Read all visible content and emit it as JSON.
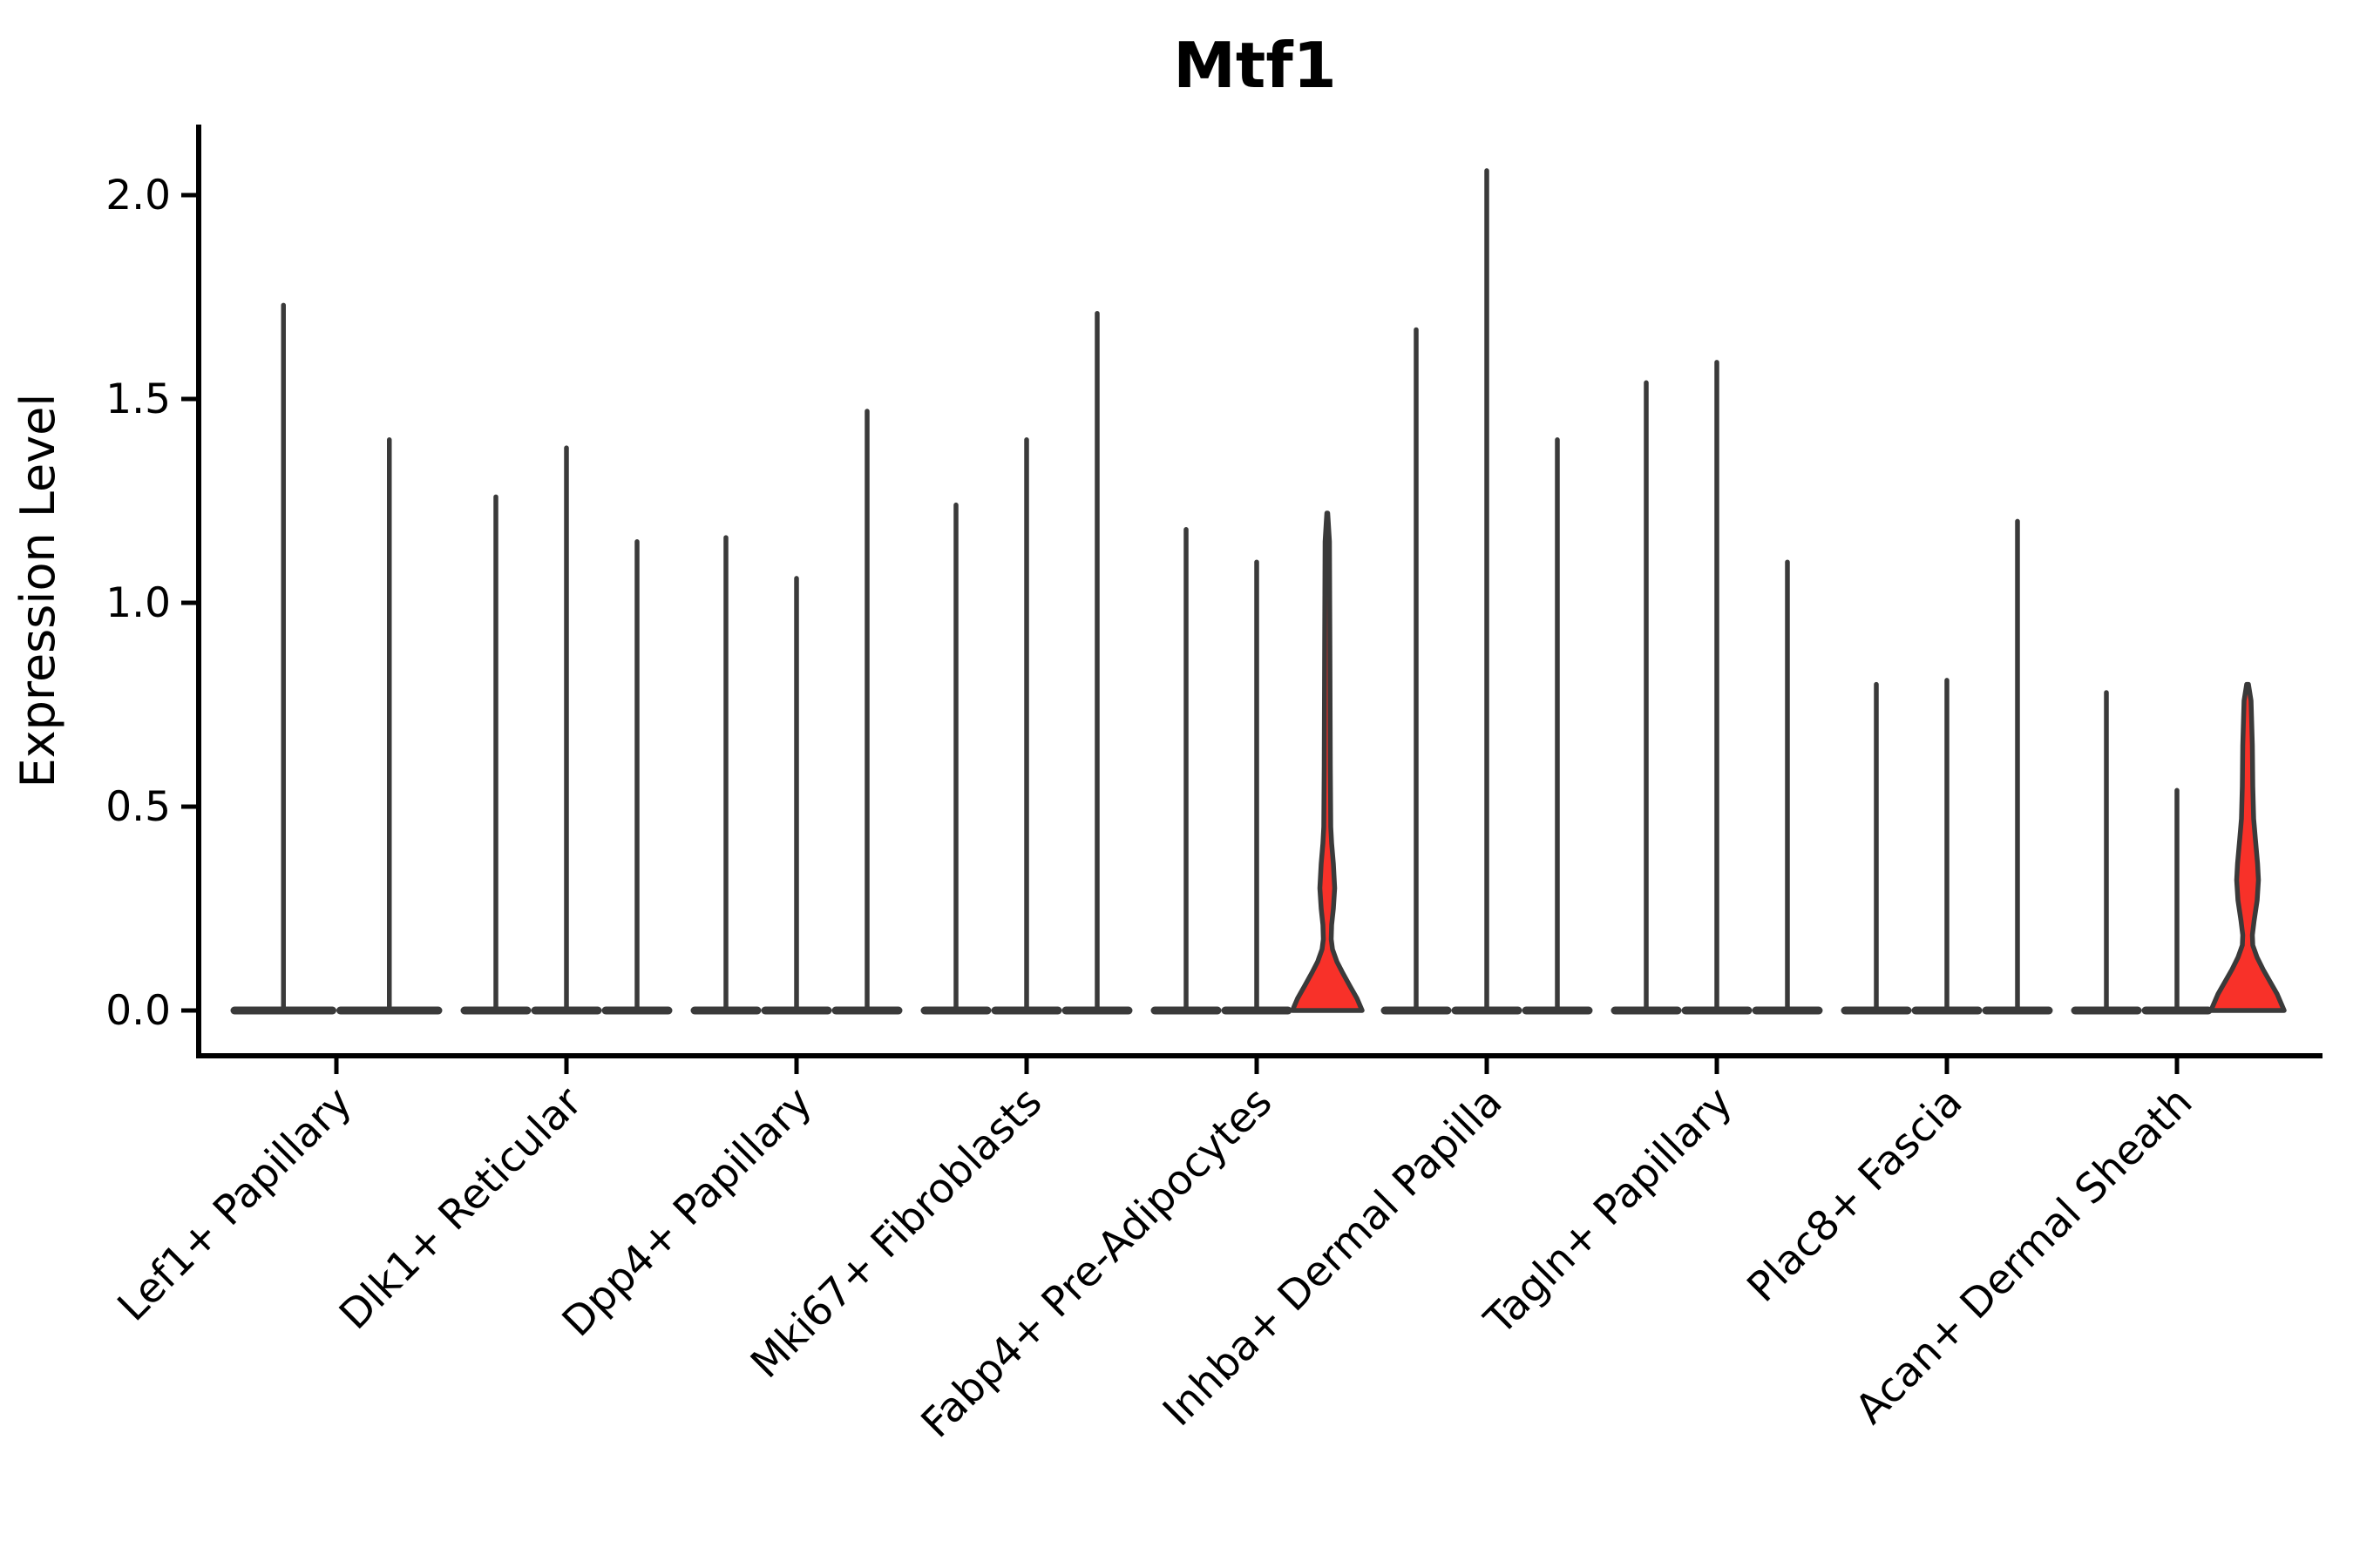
{
  "chart_data": {
    "type": "violin",
    "title": "Mtf1",
    "xlabel": "",
    "ylabel": "Expression Level",
    "yticks": [
      {
        "label": "0.0",
        "value": 0.0
      },
      {
        "label": "0.5",
        "value": 0.5
      },
      {
        "label": "1.0",
        "value": 1.0
      },
      {
        "label": "1.5",
        "value": 1.5
      },
      {
        "label": "2.0",
        "value": 2.0
      }
    ],
    "ylim": [
      -0.11,
      2.17
    ],
    "grid": false,
    "legend": "none",
    "categories": [
      "Lef1+ Papillary",
      "Dlk1+ Reticular",
      "Dpp4+ Papillary",
      "Mki67+ Fibroblasts",
      "Fabp4+ Pre-Adipocytes",
      "Inhba+ Dermal Papilla",
      "Tagln+ Papillary",
      "Plac8+ Fascia",
      "Acan+ Dermal Sheath"
    ],
    "groups": [
      {
        "category": "Lef1+ Papillary",
        "violins": [
          {
            "max": 1.73
          },
          {
            "max": 1.4
          }
        ]
      },
      {
        "category": "Dlk1+ Reticular",
        "violins": [
          {
            "max": 1.26
          },
          {
            "max": 1.38
          },
          {
            "max": 1.15
          }
        ]
      },
      {
        "category": "Dpp4+ Papillary",
        "violins": [
          {
            "max": 1.16
          },
          {
            "max": 1.06
          },
          {
            "max": 1.47
          }
        ]
      },
      {
        "category": "Mki67+ Fibroblasts",
        "violins": [
          {
            "max": 1.24
          },
          {
            "max": 1.4
          },
          {
            "max": 1.71
          }
        ]
      },
      {
        "category": "Fabp4+ Pre-Adipocytes",
        "violins": [
          {
            "max": 1.18
          },
          {
            "max": 1.1
          },
          {
            "max": 1.22,
            "highlighted": true,
            "profile": [
              [
                1.22,
                0.5
              ],
              [
                1.15,
                2.5
              ],
              [
                0.9,
                3
              ],
              [
                0.6,
                3.5
              ],
              [
                0.45,
                4
              ],
              [
                0.41,
                5
              ],
              [
                0.36,
                7
              ],
              [
                0.3,
                8.5
              ],
              [
                0.25,
                7
              ],
              [
                0.21,
                5
              ],
              [
                0.175,
                4.5
              ],
              [
                0.15,
                6
              ],
              [
                0.12,
                11
              ],
              [
                0.095,
                17
              ],
              [
                0.06,
                26
              ],
              [
                0.03,
                34
              ],
              [
                0.0,
                40
              ]
            ]
          }
        ]
      },
      {
        "category": "Inhba+ Dermal Papilla",
        "violins": [
          {
            "max": 1.67
          },
          {
            "max": 2.06
          },
          {
            "max": 1.4
          }
        ]
      },
      {
        "category": "Tagln+ Papillary",
        "violins": [
          {
            "max": 1.54
          },
          {
            "max": 1.59
          },
          {
            "max": 1.1
          }
        ]
      },
      {
        "category": "Plac8+ Fascia",
        "violins": [
          {
            "max": 0.8
          },
          {
            "max": 0.81
          },
          {
            "max": 1.2
          }
        ]
      },
      {
        "category": "Acan+ Dermal Sheath",
        "violins": [
          {
            "max": 0.78
          },
          {
            "max": 0.54
          },
          {
            "max": 0.8,
            "highlighted": true,
            "profile": [
              [
                0.8,
                1
              ],
              [
                0.76,
                4
              ],
              [
                0.65,
                5.5
              ],
              [
                0.55,
                6
              ],
              [
                0.47,
                7
              ],
              [
                0.42,
                9
              ],
              [
                0.36,
                11.5
              ],
              [
                0.32,
                12.5
              ],
              [
                0.27,
                11
              ],
              [
                0.22,
                7.5
              ],
              [
                0.185,
                5.5
              ],
              [
                0.16,
                6
              ],
              [
                0.13,
                11
              ],
              [
                0.1,
                18
              ],
              [
                0.07,
                26
              ],
              [
                0.04,
                34
              ],
              [
                0.0,
                42
              ]
            ]
          }
        ]
      }
    ],
    "colors": {
      "violin_edge": "#3a3a3a",
      "highlight_fill": "#f83129",
      "spine": "#000000",
      "text": "#000000",
      "background": "#ffffff"
    }
  }
}
